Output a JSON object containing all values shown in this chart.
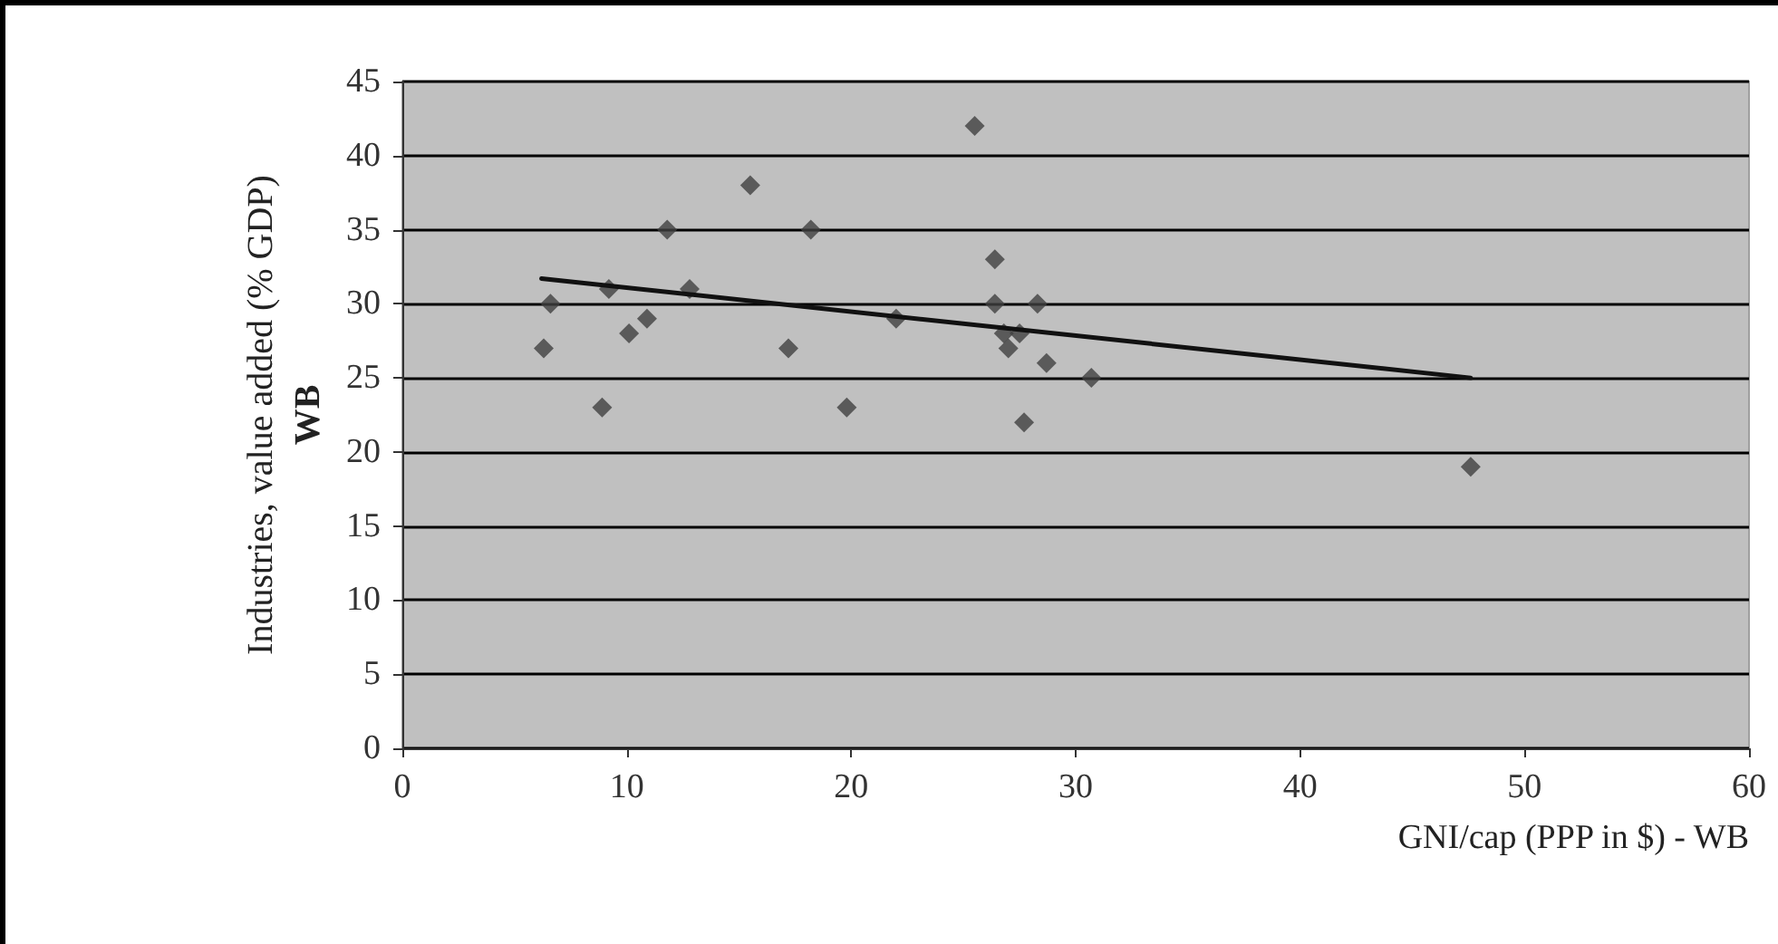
{
  "chart_data": {
    "type": "scatter",
    "xlabel": "GNI/cap (PPP in $) - WB",
    "ylabel": "Industries, value added (% GDP)\nWB",
    "xlim": [
      0,
      60
    ],
    "xticks": [
      0,
      10,
      20,
      30,
      40,
      50,
      60
    ],
    "ylim": [
      0,
      45
    ],
    "yticks": [
      0,
      5,
      10,
      15,
      20,
      25,
      30,
      35,
      40,
      45
    ],
    "grid": "y",
    "series": [
      {
        "marker": "diamond",
        "color": "#404040",
        "x": [
          6.3,
          6.6,
          8.9,
          9.2,
          10.1,
          10.9,
          11.8,
          12.8,
          15.5,
          17.2,
          18.2,
          19.8,
          22.0,
          25.5,
          26.4,
          26.4,
          28.3,
          26.8,
          27.5,
          27.0,
          28.7,
          30.7,
          27.7,
          47.6
        ],
        "values": [
          27,
          30,
          23,
          31,
          28,
          29,
          35,
          31,
          38,
          27,
          35,
          23,
          29,
          42,
          33,
          30,
          30,
          28,
          28,
          27,
          26,
          25,
          22,
          19
        ]
      },
      {
        "type": "line",
        "marker": "none",
        "color": "#111111",
        "x": [
          6.2,
          47.6
        ],
        "values": [
          31.7,
          25.0
        ]
      }
    ]
  }
}
